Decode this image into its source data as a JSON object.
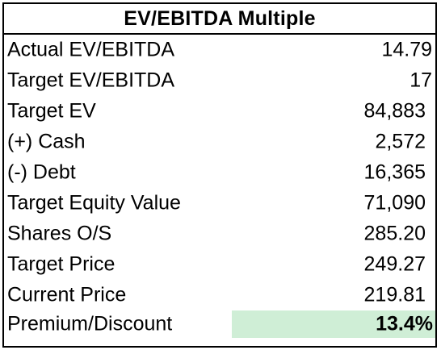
{
  "table": {
    "title": "EV/EBITDA Multiple",
    "rows": [
      {
        "label": "Actual EV/EBITDA",
        "value": "14.79"
      },
      {
        "label": "Target EV/EBITDA",
        "value": "17"
      },
      {
        "label": "Target EV",
        "value": "84,883"
      },
      {
        "label": "(+) Cash",
        "value": "2,572"
      },
      {
        "label": "(-) Debt",
        "value": "16,365"
      },
      {
        "label": "Target Equity Value",
        "value": "71,090"
      },
      {
        "label": "Shares O/S",
        "value": "285.20"
      },
      {
        "label": "Target Price",
        "value": "249.27"
      },
      {
        "label": "Current Price",
        "value": "219.81"
      },
      {
        "label": "Premium/Discount",
        "value": "13.4%"
      }
    ]
  },
  "colors": {
    "highlight_cell": "#cfeed6",
    "border": "#000000"
  }
}
